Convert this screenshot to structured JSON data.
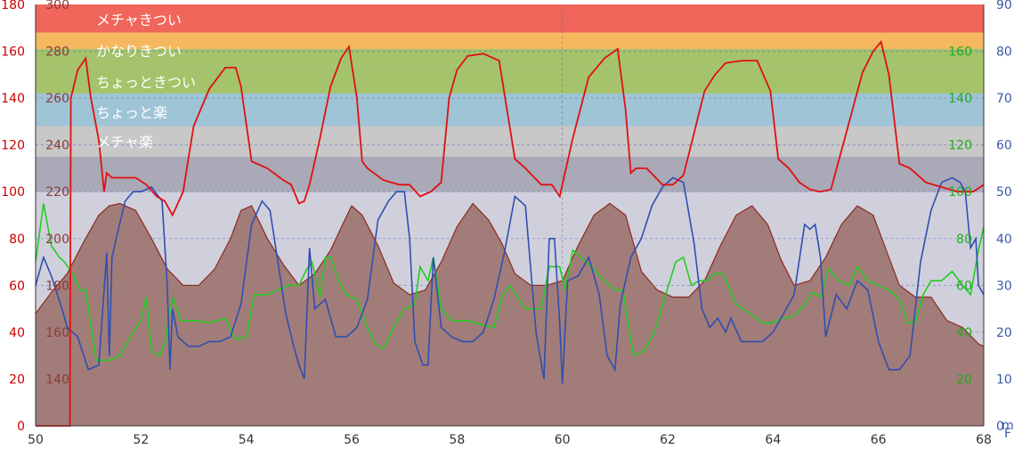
{
  "chart_data": {
    "type": "line",
    "x_range": [
      50,
      68
    ],
    "x_ticks": [
      "50",
      "52",
      "54",
      "56",
      "58",
      "60",
      "62",
      "64",
      "66",
      "68"
    ],
    "axes": {
      "left_outer": {
        "range": [
          0,
          180
        ],
        "ticks": [
          "0",
          "20",
          "40",
          "60",
          "80",
          "100",
          "120",
          "140",
          "160",
          "180"
        ],
        "color": "#cc0000"
      },
      "left_inner": {
        "range": [
          120,
          300
        ],
        "ticks": [
          "140",
          "160",
          "180",
          "200",
          "220",
          "240",
          "260",
          "280",
          "300"
        ],
        "color": "#8b3a3a"
      },
      "right_inner": {
        "range": [
          0,
          180
        ],
        "ticks": [
          "20",
          "40",
          "60",
          "80",
          "100",
          "120",
          "140",
          "160"
        ],
        "color": "#22aa22"
      },
      "right_outer": {
        "range": [
          0,
          90
        ],
        "ticks": [
          "0",
          "10",
          "20",
          "30",
          "40",
          "50",
          "60",
          "70",
          "80",
          "90"
        ],
        "color": "#3a5aa8"
      }
    },
    "right_unit_label": "m\nF",
    "grid": true,
    "zones": [
      {
        "label": "メチャきつい",
        "from": 168,
        "to": 180,
        "color": "#f0665a"
      },
      {
        "label": "かなりきつい",
        "from": 161,
        "to": 168,
        "color": "#f5b85e"
      },
      {
        "label": "ちょっときつい",
        "from": 142,
        "to": 154,
        "color": "#a4c36a"
      },
      {
        "label": "ちょっと楽",
        "from": 128,
        "to": 140,
        "color": "#9fc4d6"
      },
      {
        "label": "メチャ楽",
        "from": 115,
        "to": 128,
        "color": "#c8c8c8"
      }
    ],
    "zone_gap_colors": [
      {
        "from": 154,
        "to": 161,
        "color": "#a4c36a"
      },
      {
        "from": 140,
        "to": 142,
        "color": "#9fc4d6"
      }
    ],
    "below_zone_color": "#a9a9b8",
    "series": [
      {
        "key": "heart_rate",
        "axis": "left_outer",
        "color": "#e01010",
        "x": [
          50.0,
          50.65,
          50.67,
          50.8,
          50.95,
          51.05,
          51.2,
          51.3,
          51.35,
          51.45,
          51.6,
          51.9,
          52.1,
          52.3,
          52.45,
          52.6,
          52.8,
          53.0,
          53.3,
          53.6,
          53.8,
          53.9,
          54.1,
          54.4,
          54.7,
          54.85,
          55.0,
          55.1,
          55.2,
          55.4,
          55.6,
          55.8,
          55.95,
          56.1,
          56.2,
          56.3,
          56.6,
          56.9,
          57.1,
          57.3,
          57.5,
          57.7,
          57.85,
          58.0,
          58.2,
          58.5,
          58.8,
          58.95,
          59.1,
          59.3,
          59.6,
          59.8,
          59.95,
          60.2,
          60.5,
          60.8,
          61.05,
          61.2,
          61.3,
          61.4,
          61.6,
          61.9,
          62.1,
          62.3,
          62.5,
          62.7,
          62.9,
          63.1,
          63.4,
          63.7,
          63.95,
          64.1,
          64.3,
          64.5,
          64.7,
          64.9,
          65.1,
          65.4,
          65.7,
          65.9,
          66.05,
          66.2,
          66.4,
          66.6,
          66.9,
          67.2,
          67.5,
          67.8,
          68.0
        ],
        "y": [
          0,
          0,
          140,
          152,
          157,
          140,
          122,
          100,
          108,
          106,
          106,
          106,
          103,
          98,
          96,
          90,
          100,
          128,
          144,
          153,
          153,
          145,
          113,
          110,
          105,
          103,
          95,
          96,
          103,
          123,
          145,
          157,
          162,
          140,
          113,
          110,
          105,
          103,
          103,
          98,
          100,
          104,
          140,
          152,
          158,
          159,
          156,
          135,
          114,
          110,
          103,
          103,
          98,
          123,
          149,
          157,
          161,
          135,
          108,
          110,
          110,
          103,
          103,
          107,
          125,
          143,
          150,
          155,
          156,
          156,
          143,
          114,
          110,
          104,
          101,
          100,
          101,
          126,
          151,
          160,
          164,
          150,
          112,
          110,
          104,
          102,
          100,
          100,
          103
        ]
      },
      {
        "key": "cadence",
        "axis": "right_outer",
        "color": "#2f4fb0",
        "x": [
          50.0,
          50.15,
          50.3,
          50.5,
          50.6,
          50.8,
          51.0,
          51.2,
          51.35,
          51.4,
          51.45,
          51.55,
          51.7,
          51.85,
          52.0,
          52.2,
          52.4,
          52.5,
          52.55,
          52.6,
          52.7,
          52.9,
          53.1,
          53.3,
          53.5,
          53.7,
          53.9,
          54.1,
          54.3,
          54.45,
          54.6,
          54.75,
          54.9,
          55.0,
          55.1,
          55.2,
          55.3,
          55.5,
          55.7,
          55.9,
          56.1,
          56.3,
          56.5,
          56.7,
          56.85,
          57.0,
          57.1,
          57.2,
          57.35,
          57.45,
          57.55,
          57.7,
          57.9,
          58.1,
          58.3,
          58.5,
          58.7,
          58.9,
          59.1,
          59.3,
          59.5,
          59.65,
          59.75,
          59.85,
          59.95,
          60.0,
          60.1,
          60.3,
          60.5,
          60.7,
          60.85,
          61.0,
          61.1,
          61.3,
          61.5,
          61.7,
          61.9,
          62.1,
          62.3,
          62.5,
          62.65,
          62.8,
          62.95,
          63.1,
          63.2,
          63.4,
          63.6,
          63.8,
          64.0,
          64.2,
          64.4,
          64.6,
          64.7,
          64.8,
          64.9,
          65.0,
          65.2,
          65.4,
          65.6,
          65.8,
          66.0,
          66.2,
          66.4,
          66.6,
          66.8,
          67.0,
          67.2,
          67.4,
          67.55,
          67.65,
          67.75,
          67.85,
          67.9,
          68.0
        ],
        "y": [
          30,
          36,
          32,
          25,
          21,
          19,
          12,
          13,
          37,
          15,
          36,
          41,
          48,
          50,
          50,
          51,
          48,
          30,
          12,
          25,
          19,
          17,
          17,
          18,
          18,
          19,
          26,
          43,
          48,
          46,
          35,
          24,
          17,
          13,
          10,
          38,
          25,
          27,
          19,
          19,
          21,
          27,
          44,
          48,
          50,
          50,
          40,
          18,
          13,
          13,
          36,
          21,
          19,
          18,
          18,
          20,
          27,
          37,
          49,
          47,
          20,
          10,
          40,
          40,
          22,
          9,
          31,
          32,
          36,
          28,
          15,
          12,
          26,
          36,
          40,
          47,
          51,
          53,
          52,
          39,
          25,
          21,
          23,
          20,
          23,
          18,
          18,
          18,
          20,
          24,
          28,
          43,
          42,
          43,
          36,
          19,
          28,
          25,
          31,
          29,
          18,
          12,
          12,
          15,
          35,
          46,
          52,
          53,
          52,
          50,
          38,
          40,
          30,
          28
        ]
      },
      {
        "key": "power",
        "axis": "right_inner",
        "color": "#22cc22",
        "x": [
          50.0,
          50.15,
          50.3,
          50.45,
          50.55,
          50.7,
          50.85,
          50.95,
          51.15,
          51.4,
          51.6,
          51.8,
          52.0,
          52.1,
          52.2,
          52.35,
          52.45,
          52.6,
          52.75,
          52.9,
          53.05,
          53.3,
          53.6,
          53.8,
          54.0,
          54.15,
          54.4,
          54.6,
          54.8,
          55.0,
          55.15,
          55.25,
          55.4,
          55.5,
          55.6,
          55.75,
          55.9,
          56.1,
          56.3,
          56.45,
          56.6,
          56.8,
          57.0,
          57.2,
          57.3,
          57.45,
          57.55,
          57.7,
          57.9,
          58.2,
          58.5,
          58.7,
          58.85,
          59.0,
          59.3,
          59.6,
          59.75,
          59.95,
          60.05,
          60.2,
          60.35,
          60.55,
          60.8,
          61.0,
          61.15,
          61.35,
          61.55,
          61.75,
          61.95,
          62.15,
          62.3,
          62.45,
          62.6,
          62.75,
          62.9,
          63.05,
          63.3,
          63.55,
          63.8,
          64.0,
          64.15,
          64.3,
          64.45,
          64.6,
          64.75,
          64.9,
          65.05,
          65.25,
          65.45,
          65.6,
          65.8,
          66.0,
          66.2,
          66.4,
          66.55,
          66.7,
          66.85,
          67.0,
          67.2,
          67.4,
          67.6,
          67.75,
          67.9,
          68.0
        ],
        "y": [
          70,
          95,
          77,
          72,
          70,
          65,
          58,
          58,
          28,
          28,
          30,
          38,
          45,
          55,
          32,
          30,
          35,
          55,
          45,
          45,
          45,
          44,
          46,
          37,
          38,
          56,
          56,
          58,
          60,
          60,
          67,
          70,
          55,
          72,
          72,
          62,
          56,
          54,
          42,
          35,
          33,
          42,
          50,
          52,
          68,
          62,
          72,
          50,
          45,
          45,
          43,
          42,
          55,
          60,
          50,
          50,
          68,
          68,
          58,
          75,
          72,
          68,
          62,
          58,
          58,
          30,
          32,
          40,
          55,
          70,
          72,
          60,
          62,
          62,
          65,
          65,
          52,
          48,
          44,
          44,
          46,
          46,
          48,
          52,
          57,
          55,
          67,
          62,
          60,
          68,
          62,
          60,
          58,
          54,
          44,
          44,
          56,
          62,
          62,
          66,
          60,
          56,
          75,
          85
        ]
      },
      {
        "key": "elevation",
        "axis": "left_inner",
        "color": "#8b2a20",
        "fill": "#a27c78",
        "x": [
          50.0,
          50.3,
          50.6,
          50.9,
          51.2,
          51.4,
          51.6,
          51.9,
          52.2,
          52.5,
          52.8,
          53.1,
          53.4,
          53.7,
          53.9,
          54.1,
          54.4,
          54.7,
          55.0,
          55.3,
          55.6,
          55.85,
          56.0,
          56.2,
          56.5,
          56.8,
          57.1,
          57.4,
          57.7,
          58.0,
          58.3,
          58.6,
          58.85,
          59.1,
          59.4,
          59.7,
          60.0,
          60.3,
          60.6,
          60.9,
          61.2,
          61.35,
          61.5,
          61.8,
          62.1,
          62.4,
          62.7,
          63.0,
          63.3,
          63.6,
          63.9,
          64.15,
          64.4,
          64.7,
          65.0,
          65.3,
          65.6,
          65.9,
          66.15,
          66.4,
          66.7,
          67.0,
          67.3,
          67.6,
          67.9,
          68.0
        ],
        "y": [
          168,
          177,
          185,
          198,
          210,
          214,
          215,
          212,
          200,
          187,
          180,
          180,
          187,
          200,
          212,
          214,
          200,
          189,
          180,
          185,
          195,
          207,
          214,
          210,
          197,
          181,
          176,
          178,
          190,
          205,
          215,
          208,
          198,
          185,
          180,
          180,
          182,
          197,
          210,
          215,
          210,
          198,
          186,
          178,
          175,
          175,
          182,
          197,
          210,
          214,
          206,
          191,
          180,
          182,
          192,
          206,
          214,
          210,
          195,
          180,
          175,
          175,
          165,
          162,
          155,
          154
        ]
      }
    ]
  }
}
